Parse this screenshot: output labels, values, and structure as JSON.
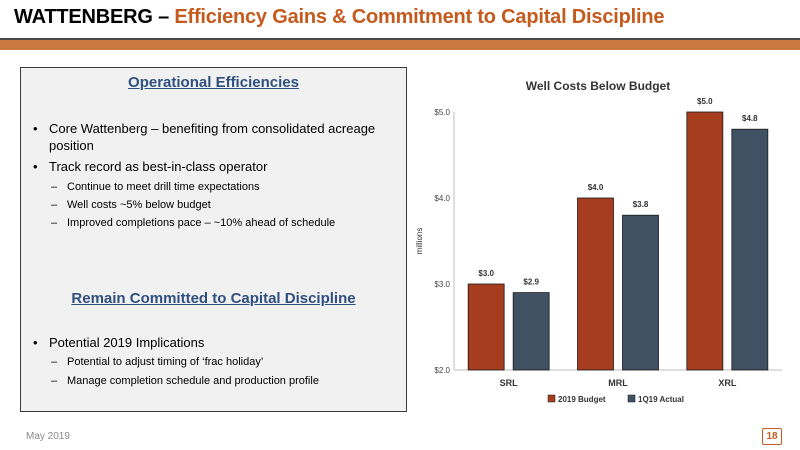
{
  "slide": {
    "title_main": "WATTENBERG – ",
    "title_accent": "Efficiency Gains & Commitment to Capital Discipline",
    "footer_date": "May 2019",
    "page_number": "18",
    "accent_color": "#c55a1d"
  },
  "panel": {
    "heading1": "Operational Efficiencies",
    "bullet1": "Core Wattenberg – benefiting from consolidated acreage position",
    "bullet2": "Track record as best-in-class operator",
    "sub_items_1": [
      "Continue to meet drill time expectations",
      "Well costs ~5% below budget",
      "Improved completions pace – ~10% ahead of schedule"
    ],
    "heading2": "Remain Committed to Capital Discipline",
    "bullet3": "Potential 2019 Implications",
    "sub_items_2": [
      "Potential to adjust timing of ‘frac holiday’",
      "Manage completion schedule and production profile"
    ]
  },
  "chart_data": {
    "type": "bar",
    "title": "Well Costs Below Budget",
    "ylabel": "millions",
    "xlabel": "",
    "categories": [
      "SRL",
      "MRL",
      "XRL"
    ],
    "series": [
      {
        "name": "2019 Budget",
        "values": [
          3.0,
          4.0,
          5.0
        ],
        "labels": [
          "$3.0",
          "$4.0",
          "$5.0"
        ],
        "color": "#a63d1e"
      },
      {
        "name": "1Q19 Actual",
        "values": [
          2.9,
          3.8,
          4.8
        ],
        "labels": [
          "$2.9",
          "$3.8",
          "$4.8"
        ],
        "color": "#3f5162"
      }
    ],
    "ylim": [
      2.0,
      5.0
    ],
    "yticks": [
      2.0,
      3.0,
      4.0,
      5.0
    ],
    "ytick_labels": [
      "$2.0",
      "$3.0",
      "$4.0",
      "$5.0"
    ],
    "grid": false,
    "legend_position": "bottom"
  }
}
